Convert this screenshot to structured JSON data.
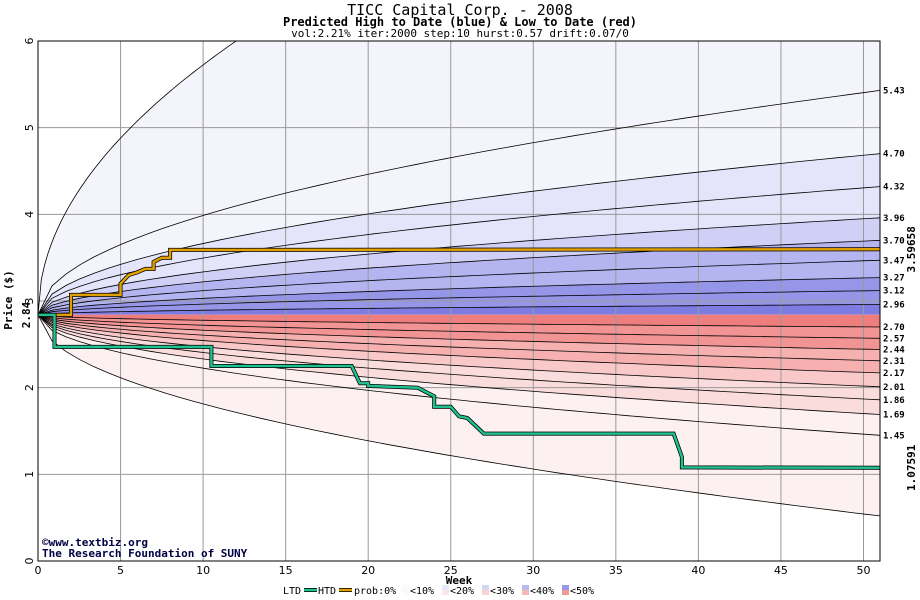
{
  "chart_data": {
    "type": "line",
    "title": "TICC Capital Corp. - 2008",
    "subtitle": "Predicted High to Date (blue) &  Low to Date (red)",
    "params": "vol:2.21% iter:2000 step:10 hurst:0.57 drift:0.07/0",
    "xlabel": "Week",
    "ylabel": "Price ($)",
    "xlim": [
      0,
      51
    ],
    "ylim": [
      0,
      6
    ],
    "x_ticks": [
      0,
      5,
      10,
      15,
      20,
      25,
      30,
      35,
      40,
      45,
      50
    ],
    "y_ticks": [
      0,
      1,
      2,
      3,
      4,
      5,
      6
    ],
    "start_price": "2.84",
    "start_value": 2.84,
    "grid": true,
    "high_levels": [
      {
        "label": "5.43",
        "value": 5.43
      },
      {
        "label": "4.70",
        "value": 4.7
      },
      {
        "label": "4.32",
        "value": 4.32
      },
      {
        "label": "3.96",
        "value": 3.96
      },
      {
        "label": "3.70",
        "value": 3.7
      },
      {
        "label": "3.47",
        "value": 3.47
      },
      {
        "label": "3.27",
        "value": 3.27
      },
      {
        "label": "3.12",
        "value": 3.12
      },
      {
        "label": "2.96",
        "value": 2.96
      }
    ],
    "low_levels": [
      {
        "label": "2.70",
        "value": 2.7
      },
      {
        "label": "2.57",
        "value": 2.57
      },
      {
        "label": "2.44",
        "value": 2.44
      },
      {
        "label": "2.31",
        "value": 2.31
      },
      {
        "label": "2.17",
        "value": 2.17
      },
      {
        "label": "2.01",
        "value": 2.01
      },
      {
        "label": "1.86",
        "value": 1.86
      },
      {
        "label": "1.69",
        "value": 1.69
      },
      {
        "label": "1.45",
        "value": 1.45
      }
    ],
    "outer_high_end": 6.0,
    "outer_high_x": 12,
    "outer_low_end": 0.52,
    "htd_final": "3.59658",
    "ltd_final": "1.07591",
    "series": [
      {
        "name": "HTD",
        "color": "#e0a000",
        "x": [
          0,
          2,
          2,
          5,
          5,
          5.5,
          6,
          6.5,
          7,
          7,
          7.5,
          8,
          8,
          51
        ],
        "y": [
          2.84,
          2.84,
          3.07,
          3.07,
          3.2,
          3.3,
          3.33,
          3.37,
          3.37,
          3.45,
          3.5,
          3.5,
          3.59,
          3.5966
        ]
      },
      {
        "name": "LTD",
        "color": "#20c090",
        "x": [
          0,
          1,
          1,
          10,
          10.5,
          10.5,
          19,
          19.5,
          20,
          20,
          23,
          24,
          24,
          25,
          25.5,
          26,
          27,
          27,
          38.5,
          39,
          39,
          51
        ],
        "y": [
          2.84,
          2.84,
          2.47,
          2.47,
          2.47,
          2.25,
          2.25,
          2.05,
          2.05,
          2.02,
          2.0,
          1.9,
          1.78,
          1.78,
          1.67,
          1.65,
          1.47,
          1.47,
          1.47,
          1.2,
          1.08,
          1.0759
        ]
      }
    ],
    "colors": {
      "high_band": [
        "#f4f4fc",
        "#e4e4fa",
        "#d0d0f6",
        "#b4b4f0",
        "#9696e8",
        "#7c7ce2"
      ],
      "low_band": [
        "#fcf0f0",
        "#fbdcdc",
        "#f9c8c8",
        "#f6b0b0",
        "#f29494",
        "#ee7e7e"
      ],
      "htd_label": "#b08000",
      "ltd_label": "#20a070"
    },
    "legend": [
      "LTD",
      "HTD",
      "prob:0%",
      "<10%",
      "<20%",
      "<30%",
      "<40%",
      "<50%"
    ]
  },
  "credit": {
    "line1": "©www.textbiz.org",
    "line2": "The Research Foundation of SUNY"
  }
}
